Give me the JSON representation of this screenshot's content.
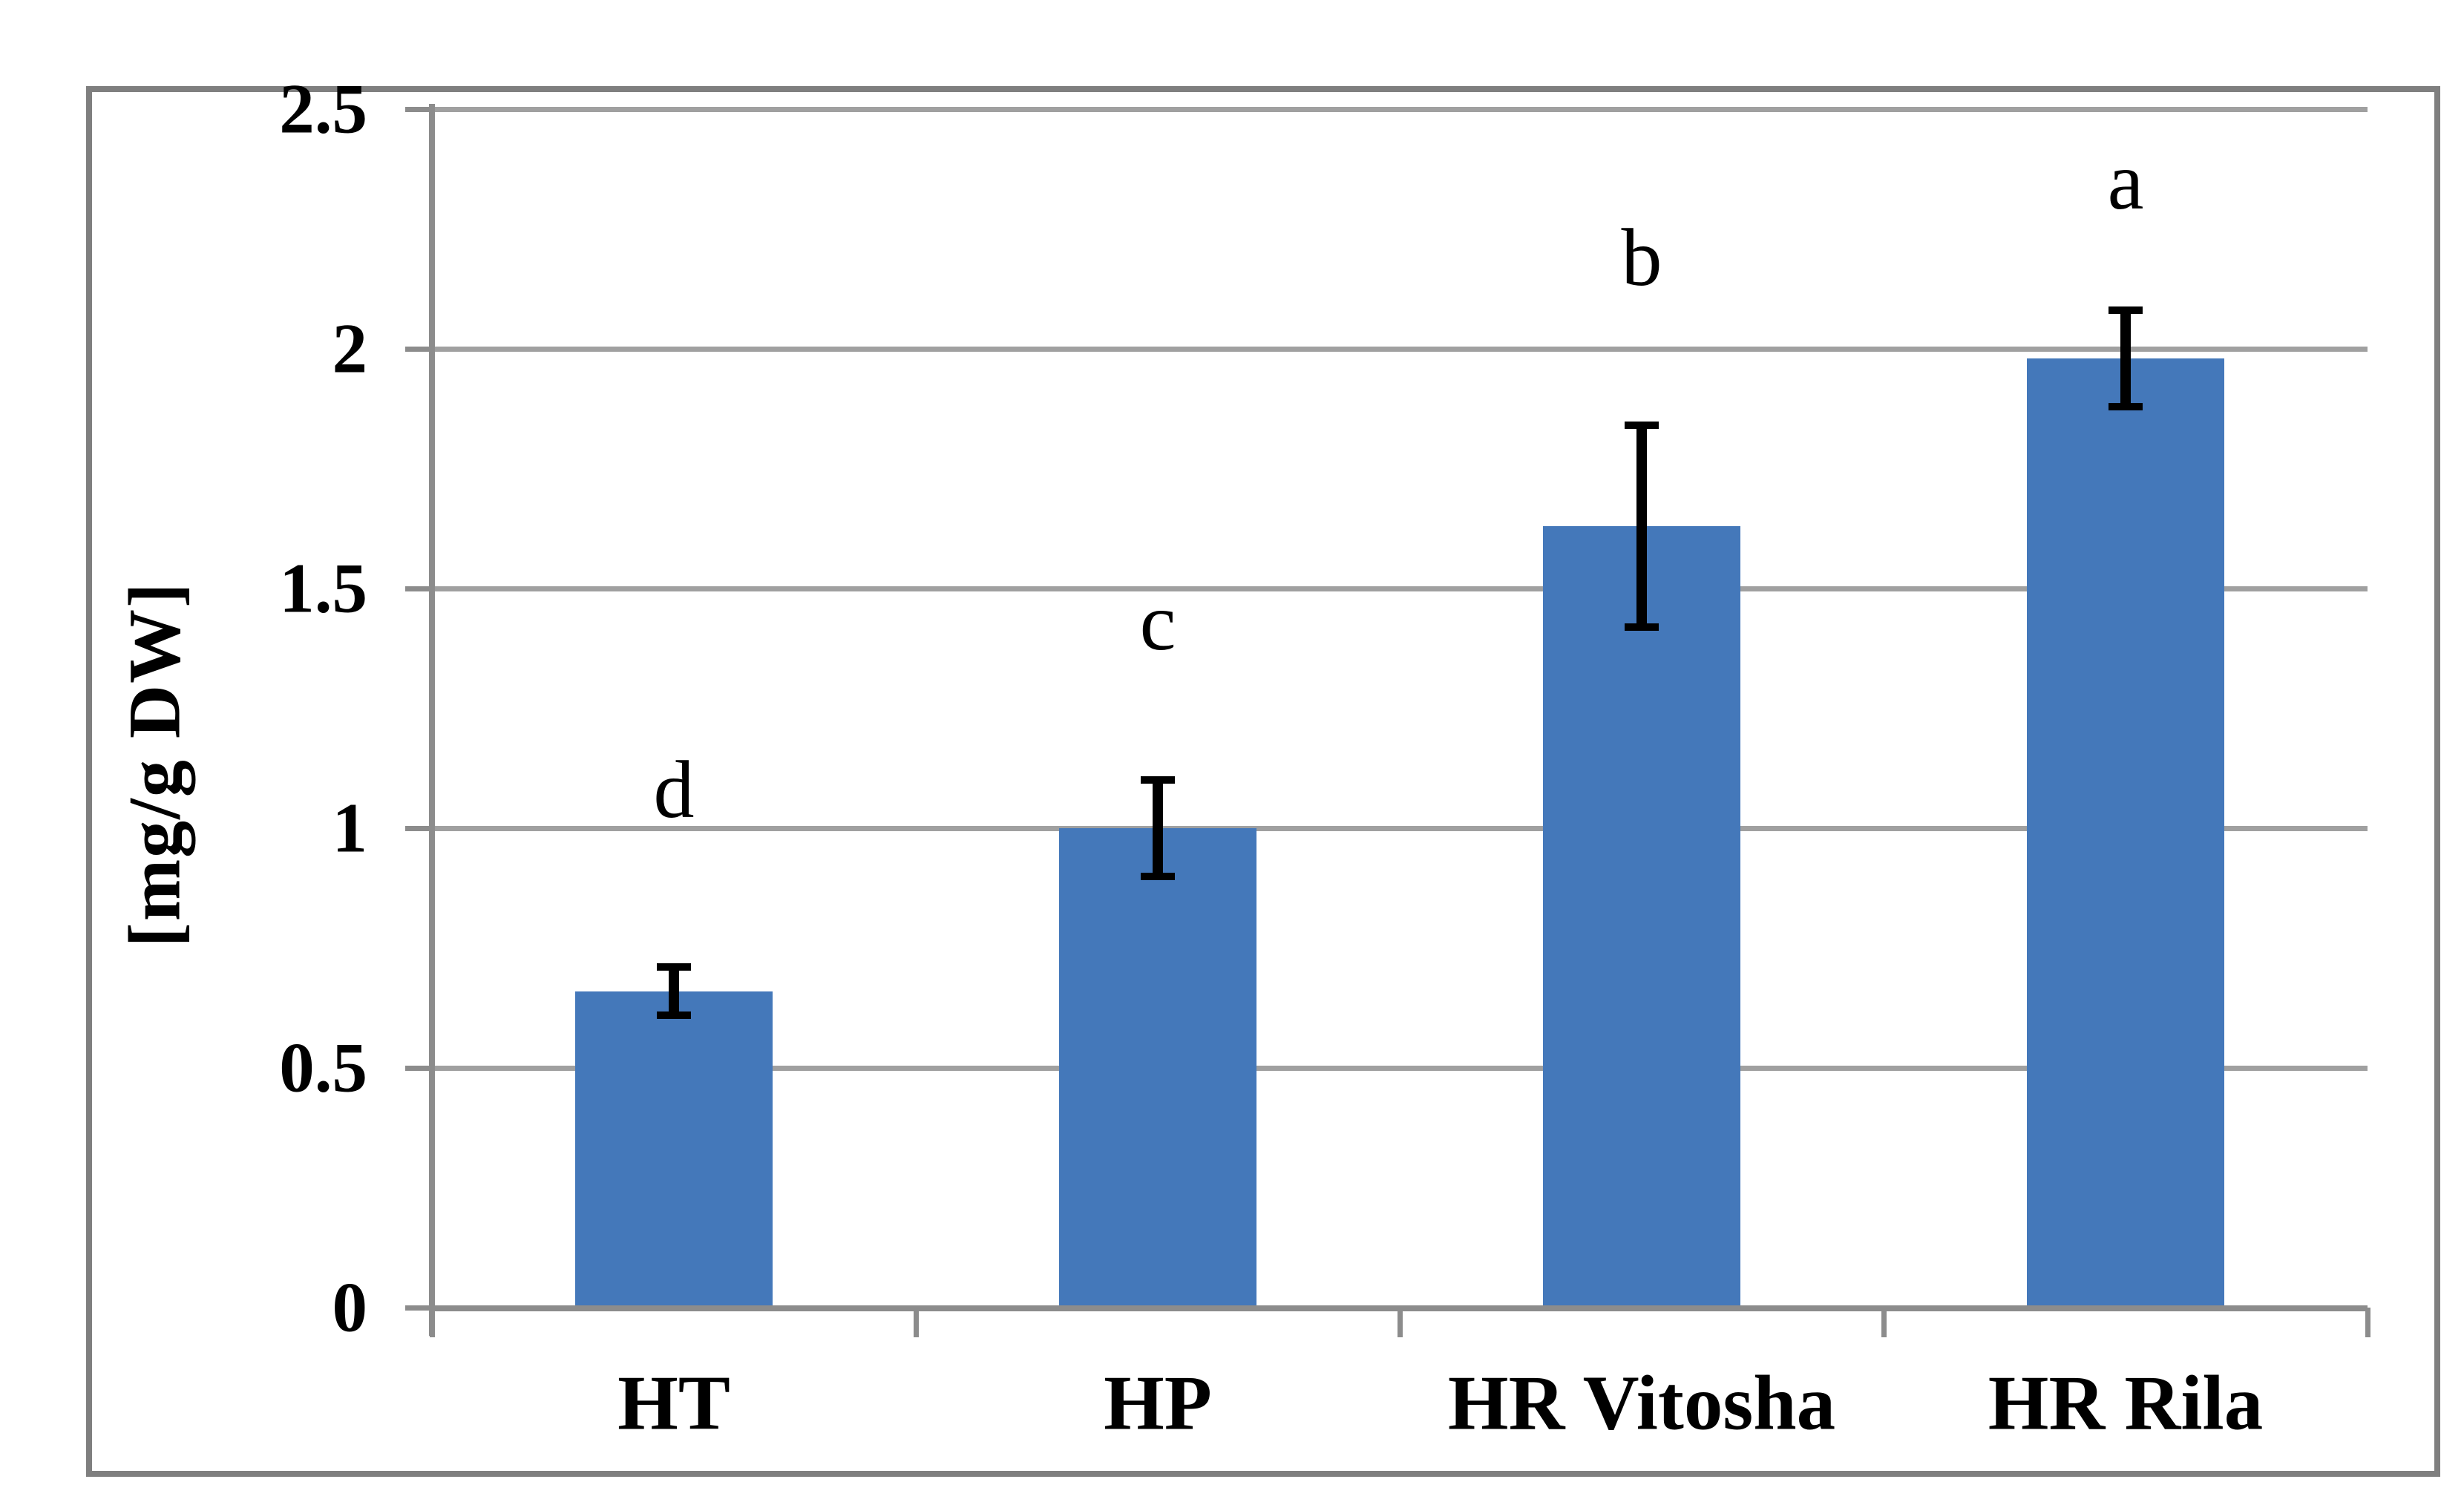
{
  "figure": {
    "background_color": "#ffffff",
    "border_color": "#7f7f7f"
  },
  "chart_data": {
    "type": "bar",
    "title": "",
    "xlabel": "",
    "ylabel": "[mg/g DW]",
    "categories": [
      "HT",
      "HP",
      "HR Vitosha",
      "HR Rila"
    ],
    "values": [
      0.66,
      1.0,
      1.63,
      1.98
    ],
    "error_bars": [
      0.05,
      0.1,
      0.21,
      0.1
    ],
    "significance_letters": [
      "d",
      "c",
      "b",
      "a"
    ],
    "significance_letter_y_values": [
      1.08,
      1.43,
      2.19,
      2.35
    ],
    "ylim": [
      0,
      2.5
    ],
    "yticks": [
      0,
      0.5,
      1,
      1.5,
      2,
      2.5
    ],
    "ytick_labels": [
      "0",
      "0.5",
      "1",
      "1.5",
      "2",
      "2.5"
    ],
    "grid": "horizontal gridlines on",
    "legend_position": "none",
    "bar_color": "#4478ba",
    "error_bar_color": "#000000",
    "gridline_color": "#a0a0a0",
    "axis_color": "#8c8c8c",
    "text_color": "#000000"
  }
}
